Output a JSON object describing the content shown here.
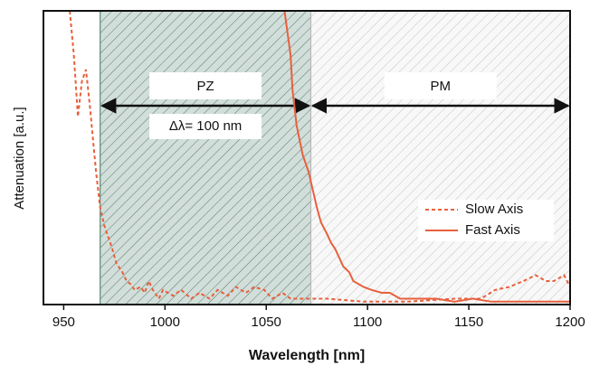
{
  "chart_data": {
    "type": "line",
    "x_label": "Wavelength [nm]",
    "y_label": "Attenuation [a.u.]",
    "xlim": [
      940,
      1200
    ],
    "xticks": [
      950,
      1000,
      1050,
      1100,
      1150,
      1200
    ],
    "ylim": [
      0,
      100
    ],
    "legend": "center right",
    "regions": [
      {
        "label": "PZ",
        "x": [
          968,
          1072
        ],
        "color": "#5a8a78",
        "annotation": "Δλ= 100 nm"
      },
      {
        "label": "PM",
        "x": [
          1072,
          1200
        ],
        "color": "#b8b8b8"
      }
    ],
    "series": [
      {
        "name": "Slow Axis",
        "color": "#e8603c",
        "style": "dashed",
        "x": [
          953,
          955,
          957,
          959,
          961,
          963,
          966,
          968,
          970,
          972,
          974,
          976,
          979,
          981,
          983,
          985,
          988,
          990,
          992,
          994,
          997,
          999,
          1004,
          1008,
          1013,
          1017,
          1022,
          1026,
          1031,
          1035,
          1040,
          1044,
          1049,
          1053,
          1058,
          1062,
          1071,
          1080,
          1098,
          1120,
          1143,
          1156,
          1163,
          1170,
          1177,
          1183,
          1188,
          1192,
          1197,
          1200
        ],
        "values": [
          100,
          85,
          64,
          76,
          80,
          67,
          45,
          33,
          27,
          23,
          19,
          14,
          11,
          8,
          7,
          5,
          6,
          4,
          8,
          5,
          2,
          5,
          3,
          5,
          2,
          4,
          2,
          5,
          3,
          6,
          4,
          6,
          5,
          2,
          4,
          2,
          2,
          2,
          1,
          1,
          2,
          2,
          5,
          6,
          8,
          10,
          8,
          8,
          10,
          6
        ]
      },
      {
        "name": "Fast Axis",
        "color": "#e8603c",
        "style": "solid",
        "x": [
          1059,
          1062,
          1063,
          1065,
          1068,
          1071,
          1073,
          1075,
          1077,
          1080,
          1082,
          1084,
          1086,
          1088,
          1091,
          1093,
          1098,
          1102,
          1107,
          1111,
          1116,
          1125,
          1134,
          1143,
          1152,
          1161,
          1170,
          1187,
          1200
        ],
        "values": [
          100,
          85,
          73,
          61,
          51,
          45,
          39,
          33,
          28,
          24,
          21,
          19,
          16,
          13,
          11,
          8,
          6,
          5,
          4,
          4,
          2,
          2,
          2,
          1,
          2,
          1,
          1,
          1,
          1
        ]
      }
    ]
  }
}
